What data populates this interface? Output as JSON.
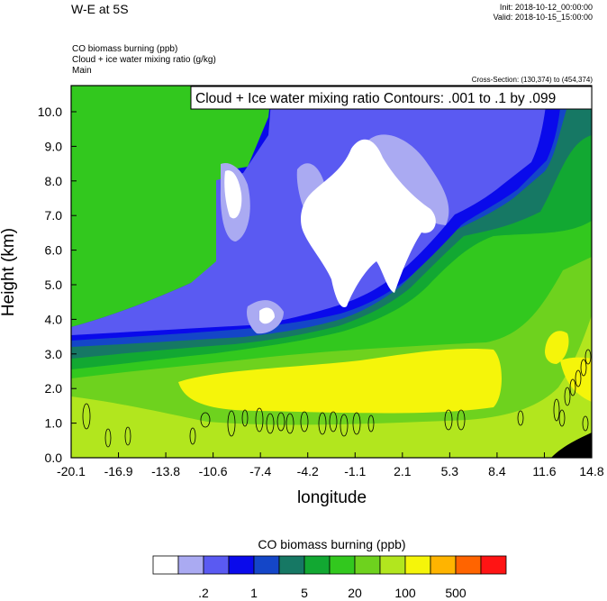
{
  "header": {
    "title": "W-E at 5S",
    "init": "Init: 2018-10-12_00:00:00",
    "valid": "Valid: 2018-10-15_15:00:00"
  },
  "fields": [
    "CO biomass burning   (ppb)",
    "Cloud + ice water mixing ratio   (g/kg)",
    "Main"
  ],
  "cross_section": "Cross-Section: (130,374) to (454,374)",
  "chart_data": {
    "type": "heatmap",
    "title": "W-E at 5S",
    "xlabel": "longitude",
    "ylabel": "Height (km)",
    "xlim": [
      -20.1,
      14.8
    ],
    "ylim": [
      0.0,
      10.8
    ],
    "x_ticks": [
      "-20.1",
      "-16.9",
      "-13.8",
      "-10.6",
      "-7.4",
      "-4.2",
      "-1.1",
      "2.1",
      "5.3",
      "8.4",
      "11.6",
      "14.8"
    ],
    "y_ticks": [
      "0.0",
      "1.0",
      "2.0",
      "3.0",
      "4.0",
      "5.0",
      "6.0",
      "7.0",
      "8.0",
      "9.0",
      "10.0"
    ],
    "contour_annotation": "Cloud + Ice water mixing ratio Contours: .001 to .1 by .099",
    "colorbar": {
      "title": "CO biomass burning  (ppb)",
      "colors": [
        "#ffffff",
        "#aaaaf2",
        "#5a5af2",
        "#0a0aeb",
        "#1446c8",
        "#167864",
        "#12a832",
        "#32c81e",
        "#6ed21e",
        "#b2e61e",
        "#f5f50a",
        "#ffb400",
        "#ff6400",
        "#ff1414"
      ],
      "tick_labels": [
        ".2",
        "1",
        "5",
        "20",
        "100",
        "500"
      ]
    }
  }
}
